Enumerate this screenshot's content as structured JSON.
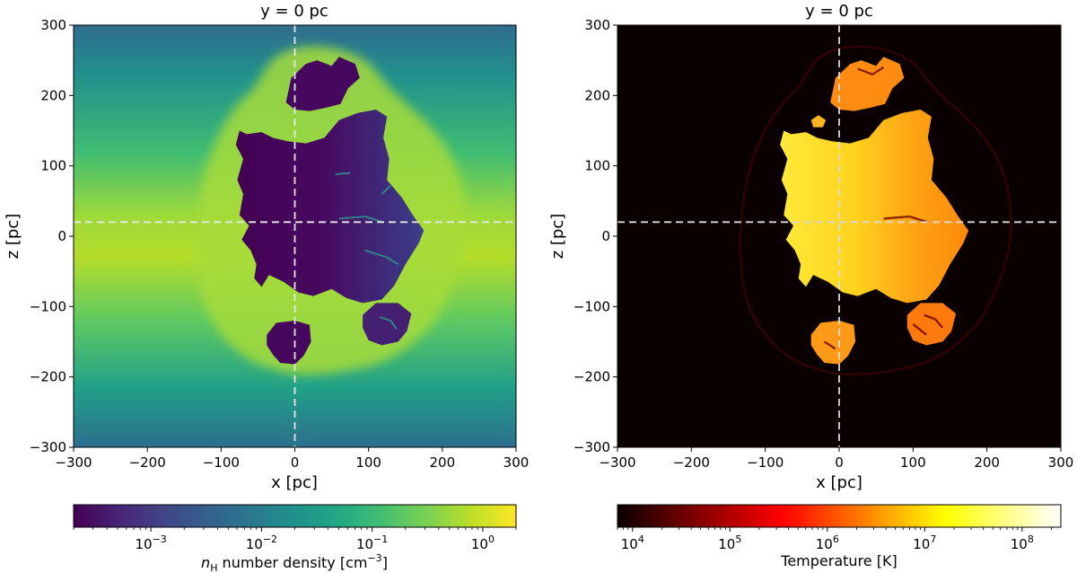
{
  "chart_data": [
    {
      "type": "heatmap",
      "title": "y = 0 pc",
      "xlabel": "x [pc]",
      "ylabel": "z [pc]",
      "xlim": [
        -300,
        300
      ],
      "ylim": [
        -300,
        300
      ],
      "xticks": [
        -300,
        -200,
        -100,
        0,
        100,
        200,
        300
      ],
      "yticks": [
        -300,
        -200,
        -100,
        0,
        100,
        200,
        300
      ],
      "xtick_labels": [
        "−300",
        "−200",
        "−100",
        "0",
        "100",
        "200",
        "300"
      ],
      "ytick_labels": [
        "−300",
        "−200",
        "−100",
        "0",
        "100",
        "200",
        "300"
      ],
      "crosshair": {
        "x": 0,
        "z": 20
      },
      "colormap": "viridis",
      "colorbar": {
        "scale": "log",
        "range": [
          0.0002,
          2
        ],
        "ticks": [
          0.001,
          0.01,
          0.1,
          1
        ],
        "tick_base": [
          "10",
          "10",
          "10",
          "10"
        ],
        "tick_exp": [
          "−3",
          "−2",
          "−1",
          "0"
        ],
        "label_pre": "n",
        "label_sub": "H",
        "label_mid": " number density [cm",
        "label_sup": "−3",
        "label_post": "]"
      },
      "field": {
        "background_center": 1.3,
        "background_edge": 0.06,
        "background_scale_height_pc": 160,
        "shell_value": 0.7,
        "bubble_min": 0.00025,
        "bubble_max": 0.0009,
        "blob_value": 0.0003
      }
    },
    {
      "type": "heatmap",
      "title": "y = 0 pc",
      "xlabel": "x [pc]",
      "ylabel": "z [pc]",
      "xlim": [
        -300,
        300
      ],
      "ylim": [
        -300,
        300
      ],
      "xticks": [
        -300,
        -200,
        -100,
        0,
        100,
        200,
        300
      ],
      "yticks": [
        -300,
        -200,
        -100,
        0,
        100,
        200,
        300
      ],
      "xtick_labels": [
        "−300",
        "−200",
        "−100",
        "0",
        "100",
        "200",
        "300"
      ],
      "ytick_labels": [
        "−300",
        "−200",
        "−100",
        "0",
        "100",
        "200",
        "300"
      ],
      "crosshair": {
        "x": 0,
        "z": 20
      },
      "colormap": "hot",
      "colorbar": {
        "scale": "log",
        "range": [
          7000,
          250000000
        ],
        "ticks": [
          10000,
          100000,
          1000000,
          10000000,
          100000000
        ],
        "tick_base": [
          "10",
          "10",
          "10",
          "10",
          "10"
        ],
        "tick_exp": [
          "4",
          "5",
          "6",
          "7",
          "8"
        ],
        "label": "Temperature [K]"
      },
      "field": {
        "background": 7000,
        "bubble_min": 2000000,
        "bubble_max": 25000000,
        "blob_min": 800000,
        "blob_max": 8000000
      }
    }
  ]
}
